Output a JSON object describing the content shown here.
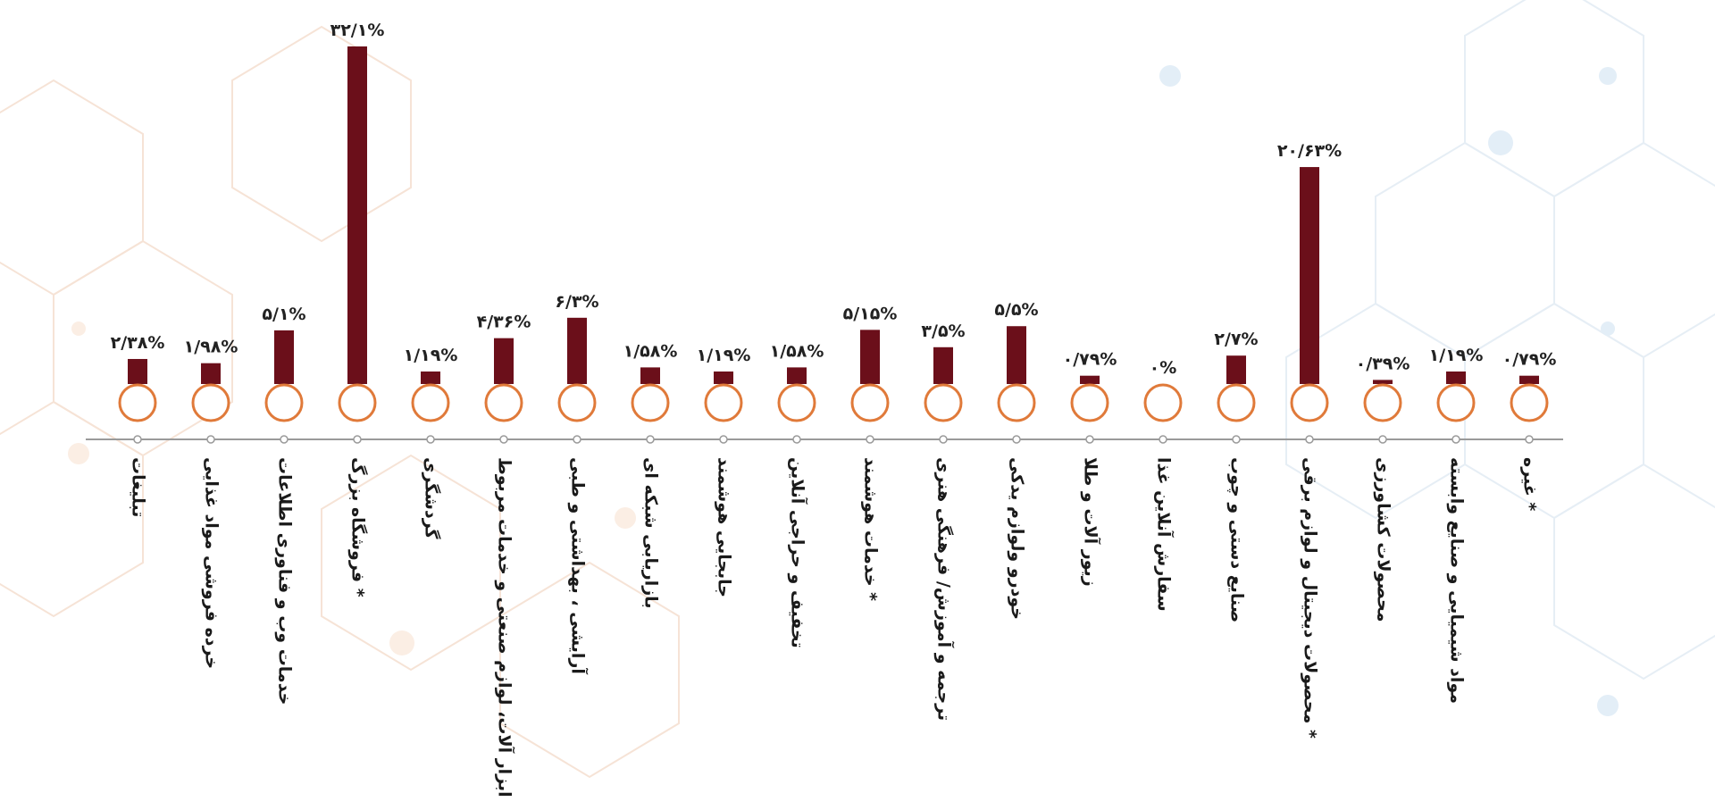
{
  "chart_data": {
    "type": "bar",
    "title": "",
    "xlabel": "",
    "ylabel": "",
    "ylim": [
      0,
      32.1
    ],
    "grid": false,
    "legend": "none",
    "categories": [
      "تبلیغات",
      "خرده فروشی مواد غذایی",
      "خدمات وب و فناوری اطلاعات",
      "فروشگاه بزرگ *",
      "گردشگری",
      "ابزار آلات، لوازم صنعتی و خدمات مربوط",
      "آرایشی ، بهداشتی و طبی",
      "بازاریابی شبکه ای",
      "جابجایی هوشمند",
      "تخفیف و حراجی آنلاین",
      "خدمات هوشمند *",
      "ترجمه و آموزش/ فرهنگی هنری",
      "خودرو ولوازم یدکی",
      "زیور آلات و طلا",
      "سفارش آنلاین غذا",
      "صنایع دستی و چوب",
      "محصولات دیجیتال و لوازم برقی *",
      "محصولات کشاورزی",
      "مواد شیمیایی و صنایع وابسته",
      "غیره *"
    ],
    "values": [
      2.38,
      1.98,
      5.1,
      32.1,
      1.19,
      4.36,
      6.3,
      1.58,
      1.19,
      1.58,
      5.15,
      3.5,
      5.5,
      0.79,
      0,
      2.7,
      20.63,
      0.39,
      1.19,
      0.79
    ],
    "data_labels": [
      "۲/۳۸%",
      "۱/۹۸%",
      "۵/۱%",
      "۳۲/۱%",
      "۱/۱۹%",
      "۴/۳۶%",
      "۶/۳%",
      "۱/۵۸%",
      "۱/۱۹%",
      "۱/۵۸%",
      "۵/۱۵%",
      "۳/۵%",
      "۵/۵%",
      "۰/۷۹%",
      "۰%",
      "۲/۷%",
      "۲۰/۶۳%",
      "۰/۳۹%",
      "۱/۱۹%",
      "۰/۷۹%"
    ]
  },
  "colors": {
    "bar": "#6b0f1a",
    "circle_stroke": "#e07a3a",
    "axis": "#9a9a9a",
    "value_text": "#222222",
    "category_text": "#1a1a1a",
    "background_pattern": "#f6e3d6"
  }
}
